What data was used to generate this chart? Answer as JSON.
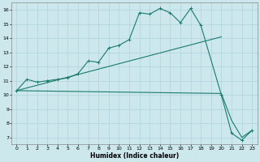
{
  "xlabel": "Humidex (Indice chaleur)",
  "bg_color": "#cce8ed",
  "grid_color": "#b0d4da",
  "line_color": "#1a7a6e",
  "xlim": [
    -0.5,
    23.5
  ],
  "ylim": [
    6.5,
    16.5
  ],
  "xticks": [
    0,
    1,
    2,
    3,
    4,
    5,
    6,
    7,
    8,
    9,
    10,
    11,
    12,
    13,
    14,
    15,
    16,
    17,
    18,
    19,
    20,
    21,
    22,
    23
  ],
  "yticks": [
    7,
    8,
    9,
    10,
    11,
    12,
    13,
    14,
    15,
    16
  ],
  "line1_x": [
    0,
    1,
    2,
    3,
    4,
    5,
    6,
    7,
    8,
    9,
    10,
    11,
    12,
    13,
    14,
    15,
    16,
    17,
    18,
    20,
    21,
    22,
    23
  ],
  "line1_y": [
    10.3,
    11.1,
    10.9,
    11.0,
    11.1,
    11.2,
    11.5,
    12.4,
    12.3,
    13.3,
    13.5,
    13.9,
    15.8,
    15.7,
    16.1,
    15.8,
    15.1,
    16.1,
    14.9,
    10.0,
    7.3,
    6.8,
    7.5
  ],
  "line2_x": [
    0,
    20
  ],
  "line2_y": [
    10.3,
    14.1
  ],
  "line3_x": [
    0,
    20,
    21,
    22,
    23
  ],
  "line3_y": [
    10.3,
    10.1,
    8.2,
    7.0,
    7.5
  ]
}
